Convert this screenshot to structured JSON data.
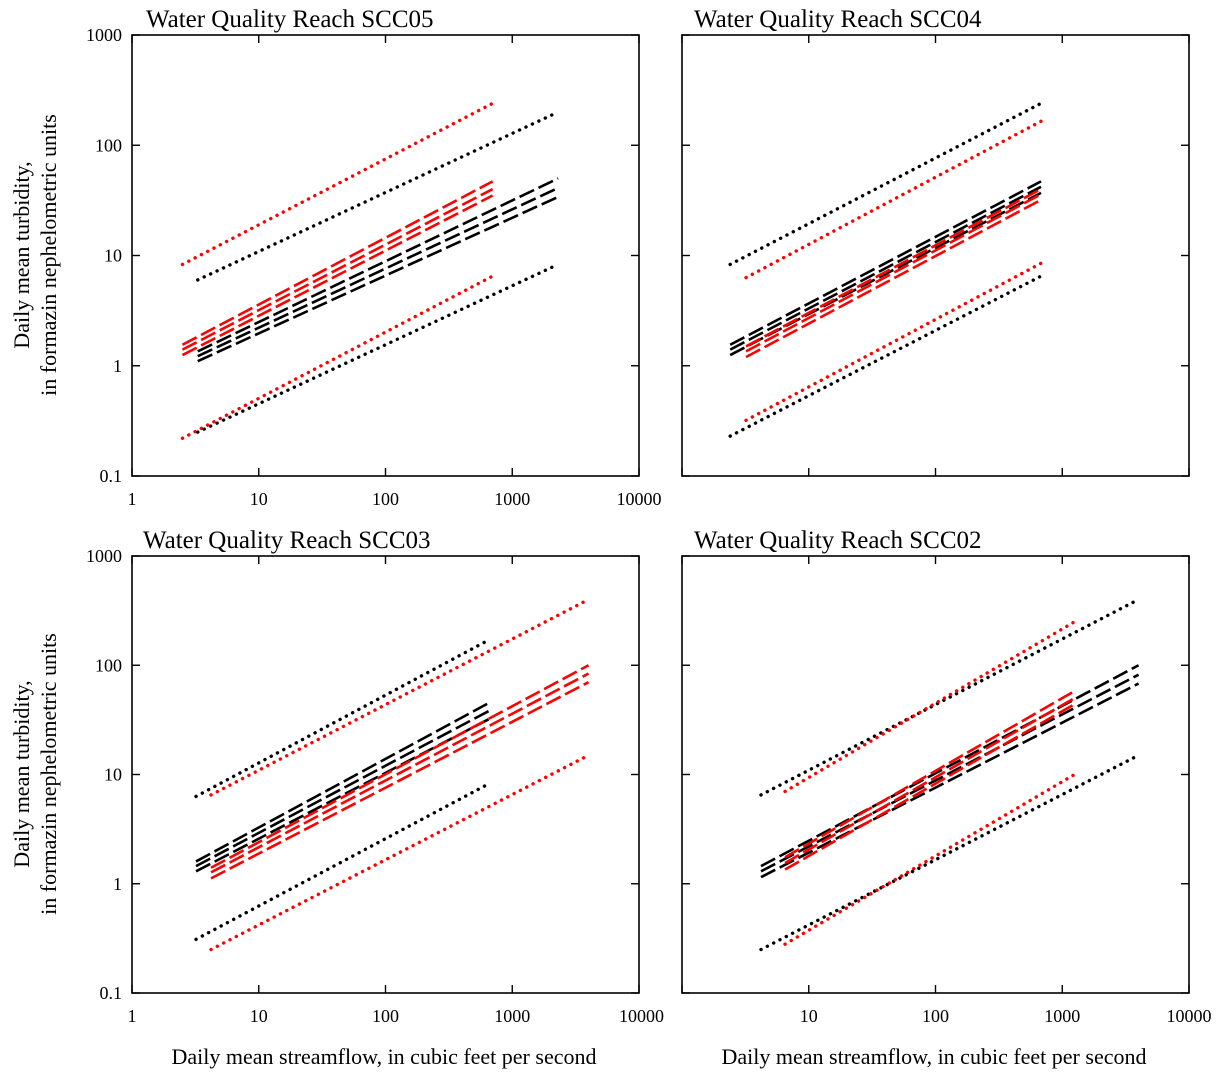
{
  "figure": {
    "ylabel_line1": "Daily mean turbidity,",
    "ylabel_line2": "in formazin nephelometric units",
    "xlabel": "Daily mean streamflow, in cubic feet per second"
  },
  "chart_data": [
    {
      "type": "line",
      "title": "Water Quality Reach SCC05",
      "xscale": "log",
      "yscale": "log",
      "xlim": [
        1,
        10000
      ],
      "ylim": [
        0.1,
        1000
      ],
      "xticks": [
        "1",
        "10",
        "100",
        "1000",
        "10000"
      ],
      "yticks": [
        "0.1",
        "1",
        "10",
        "100",
        "1000"
      ],
      "grid": false,
      "series": [
        {
          "color": "#ff0000",
          "style": "dotted",
          "x": [
            2.5,
            700
          ],
          "y": [
            8.3,
            240
          ]
        },
        {
          "color": "#ff0000",
          "style": "dotted",
          "x": [
            2.5,
            700
          ],
          "y": [
            0.22,
            6.5
          ]
        },
        {
          "color": "#ff0000",
          "style": "dashed",
          "x": [
            2.5,
            700
          ],
          "y": [
            1.55,
            47
          ]
        },
        {
          "color": "#ff0000",
          "style": "dashed",
          "x": [
            2.5,
            700
          ],
          "y": [
            1.4,
            40
          ]
        },
        {
          "color": "#ff0000",
          "style": "dashed",
          "x": [
            2.5,
            700
          ],
          "y": [
            1.25,
            35
          ]
        },
        {
          "color": "#000000",
          "style": "dotted",
          "x": [
            3.3,
            2300
          ],
          "y": [
            6,
            200
          ]
        },
        {
          "color": "#000000",
          "style": "dotted",
          "x": [
            3.3,
            2300
          ],
          "y": [
            0.25,
            8.3
          ]
        },
        {
          "color": "#000000",
          "style": "dashed",
          "x": [
            3.3,
            2300
          ],
          "y": [
            1.35,
            50
          ]
        },
        {
          "color": "#000000",
          "style": "dashed",
          "x": [
            3.3,
            2300
          ],
          "y": [
            1.22,
            41
          ]
        },
        {
          "color": "#000000",
          "style": "dashed",
          "x": [
            3.3,
            2300
          ],
          "y": [
            1.1,
            34
          ]
        }
      ]
    },
    {
      "type": "line",
      "title": "Water Quality Reach SCC04",
      "xscale": "log",
      "yscale": "log",
      "xlim": [
        1,
        10000
      ],
      "ylim": [
        0.1,
        1000
      ],
      "xticks": [],
      "yticks": [],
      "grid": false,
      "series": [
        {
          "color": "#000000",
          "style": "dotted",
          "x": [
            2.4,
            680
          ],
          "y": [
            8.3,
            240
          ]
        },
        {
          "color": "#000000",
          "style": "dotted",
          "x": [
            2.4,
            680
          ],
          "y": [
            0.23,
            6.5
          ]
        },
        {
          "color": "#000000",
          "style": "dashed",
          "x": [
            2.4,
            680
          ],
          "y": [
            1.55,
            47
          ]
        },
        {
          "color": "#000000",
          "style": "dashed",
          "x": [
            2.4,
            680
          ],
          "y": [
            1.4,
            42
          ]
        },
        {
          "color": "#000000",
          "style": "dashed",
          "x": [
            2.4,
            680
          ],
          "y": [
            1.25,
            37
          ]
        },
        {
          "color": "#ff0000",
          "style": "dotted",
          "x": [
            3.2,
            680
          ],
          "y": [
            6.3,
            165
          ]
        },
        {
          "color": "#ff0000",
          "style": "dotted",
          "x": [
            3.2,
            680
          ],
          "y": [
            0.32,
            8.5
          ]
        },
        {
          "color": "#ff0000",
          "style": "dashed",
          "x": [
            3.2,
            680
          ],
          "y": [
            1.5,
            40
          ]
        },
        {
          "color": "#ff0000",
          "style": "dashed",
          "x": [
            3.2,
            680
          ],
          "y": [
            1.35,
            36
          ]
        },
        {
          "color": "#ff0000",
          "style": "dashed",
          "x": [
            3.2,
            680
          ],
          "y": [
            1.2,
            32
          ]
        }
      ]
    },
    {
      "type": "line",
      "title": "Water Quality Reach SCC03",
      "xscale": "log",
      "yscale": "log",
      "xlim": [
        1,
        10000
      ],
      "ylim": [
        0.1,
        1000
      ],
      "xticks": [
        "1",
        "10",
        "100",
        "1000",
        "10000"
      ],
      "yticks": [
        "0.1",
        "1",
        "10",
        "100",
        "1000"
      ],
      "grid": false,
      "series": [
        {
          "color": "#000000",
          "style": "dotted",
          "x": [
            3.2,
            650
          ],
          "y": [
            6.3,
            170
          ]
        },
        {
          "color": "#000000",
          "style": "dotted",
          "x": [
            3.2,
            650
          ],
          "y": [
            0.31,
            8.2
          ]
        },
        {
          "color": "#000000",
          "style": "dashed",
          "x": [
            3.2,
            650
          ],
          "y": [
            1.6,
            45
          ]
        },
        {
          "color": "#000000",
          "style": "dashed",
          "x": [
            3.2,
            650
          ],
          "y": [
            1.45,
            38
          ]
        },
        {
          "color": "#000000",
          "style": "dashed",
          "x": [
            3.2,
            650
          ],
          "y": [
            1.3,
            32
          ]
        },
        {
          "color": "#ff0000",
          "style": "dotted",
          "x": [
            4.2,
            4000
          ],
          "y": [
            6.5,
            400
          ]
        },
        {
          "color": "#ff0000",
          "style": "dotted",
          "x": [
            4.2,
            4000
          ],
          "y": [
            0.25,
            15
          ]
        },
        {
          "color": "#ff0000",
          "style": "dashed",
          "x": [
            4.2,
            4000
          ],
          "y": [
            1.4,
            100
          ]
        },
        {
          "color": "#ff0000",
          "style": "dashed",
          "x": [
            4.2,
            4000
          ],
          "y": [
            1.27,
            84
          ]
        },
        {
          "color": "#ff0000",
          "style": "dashed",
          "x": [
            4.2,
            4000
          ],
          "y": [
            1.12,
            70
          ]
        }
      ]
    },
    {
      "type": "line",
      "title": "Water Quality Reach SCC02",
      "xscale": "log",
      "yscale": "log",
      "xlim": [
        1,
        10000
      ],
      "ylim": [
        0.1,
        1000
      ],
      "xticks": [
        "",
        "10",
        "100",
        "1000",
        "10000"
      ],
      "yticks": [],
      "grid": false,
      "series": [
        {
          "color": "#000000",
          "style": "dotted",
          "x": [
            4.2,
            4000
          ],
          "y": [
            6.5,
            400
          ]
        },
        {
          "color": "#000000",
          "style": "dotted",
          "x": [
            4.2,
            4000
          ],
          "y": [
            0.25,
            15
          ]
        },
        {
          "color": "#000000",
          "style": "dashed",
          "x": [
            4.2,
            4000
          ],
          "y": [
            1.45,
            100
          ]
        },
        {
          "color": "#000000",
          "style": "dashed",
          "x": [
            4.2,
            4000
          ],
          "y": [
            1.3,
            82
          ]
        },
        {
          "color": "#000000",
          "style": "dashed",
          "x": [
            4.2,
            4000
          ],
          "y": [
            1.15,
            68
          ]
        },
        {
          "color": "#ff0000",
          "style": "dotted",
          "x": [
            6.5,
            1250
          ],
          "y": [
            7,
            250
          ]
        },
        {
          "color": "#ff0000",
          "style": "dotted",
          "x": [
            6.5,
            1250
          ],
          "y": [
            0.28,
            10
          ]
        },
        {
          "color": "#ff0000",
          "style": "dashed",
          "x": [
            6.5,
            1250
          ],
          "y": [
            1.75,
            58
          ]
        },
        {
          "color": "#ff0000",
          "style": "dashed",
          "x": [
            6.5,
            1250
          ],
          "y": [
            1.55,
            50
          ]
        },
        {
          "color": "#ff0000",
          "style": "dashed",
          "x": [
            6.5,
            1250
          ],
          "y": [
            1.35,
            44
          ]
        }
      ]
    }
  ]
}
